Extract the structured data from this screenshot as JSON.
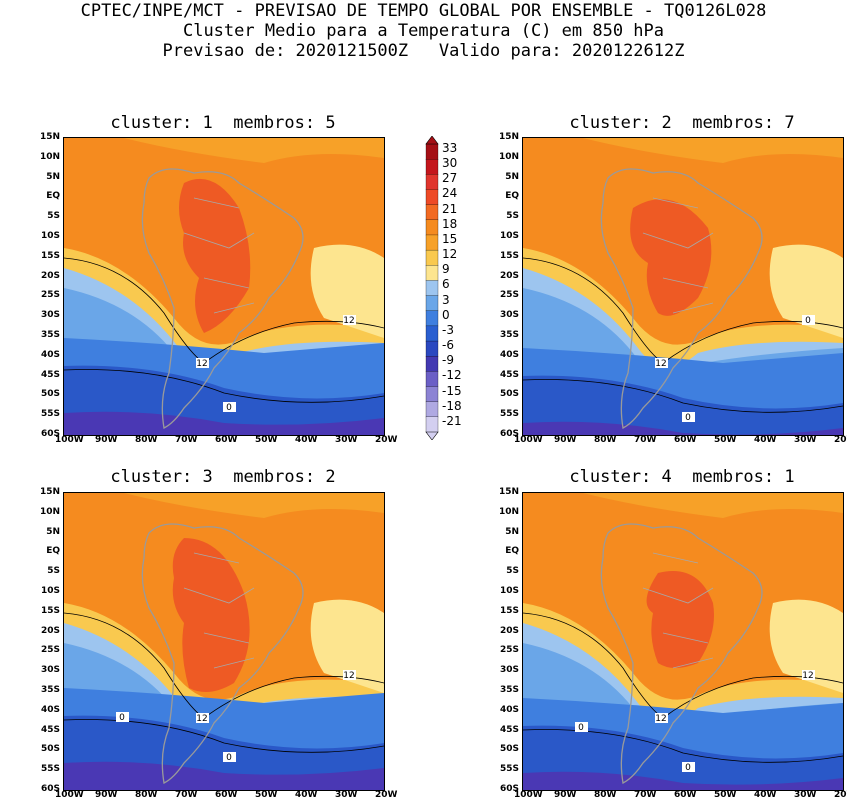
{
  "header": {
    "line1": "CPTEC/INPE/MCT - PREVISAO DE TEMPO GLOBAL POR ENSEMBLE - TQ0126L028",
    "line2": "Cluster Medio para a Temperatura (C) em 850 hPa",
    "line3": "Previsao de: 2020121500Z   Valido para: 2020122612Z"
  },
  "panels": [
    {
      "title": "cluster: 1  membros: 5",
      "contour_labels": [
        "12",
        "12",
        "0"
      ]
    },
    {
      "title": "cluster: 2  membros: 7",
      "contour_labels": [
        "12",
        "0",
        "0"
      ]
    },
    {
      "title": "cluster: 3  membros: 2",
      "contour_labels": [
        "12",
        "12",
        "0",
        "0"
      ]
    },
    {
      "title": "cluster: 4  membros: 1",
      "contour_labels": [
        "12",
        "12",
        "0",
        "0"
      ]
    }
  ],
  "lat_ticks": [
    "15N",
    "10N",
    "5N",
    "EQ",
    "5S",
    "10S",
    "15S",
    "20S",
    "25S",
    "30S",
    "35S",
    "40S",
    "45S",
    "50S",
    "55S",
    "60S"
  ],
  "lon_ticks": [
    "100W",
    "90W",
    "80W",
    "70W",
    "60W",
    "50W",
    "40W",
    "30W",
    "20W"
  ],
  "colorbar": {
    "labels": [
      "33",
      "30",
      "27",
      "24",
      "21",
      "18",
      "15",
      "12",
      "9",
      "6",
      "3",
      "0",
      "-3",
      "-6",
      "-9",
      "-12",
      "-15",
      "-18",
      "-21"
    ],
    "colors": [
      "#a50f15",
      "#c4161c",
      "#e0352d",
      "#ee4a26",
      "#f26a22",
      "#f58b1f",
      "#f7a128",
      "#f9c94f",
      "#fde58f",
      "#9dc5ef",
      "#6aa6e8",
      "#3f7fdf",
      "#2a5fd0",
      "#2a48c0",
      "#4339b2",
      "#6b5fc6",
      "#8c83d4",
      "#afa9e2",
      "#d3cff0"
    ]
  }
}
